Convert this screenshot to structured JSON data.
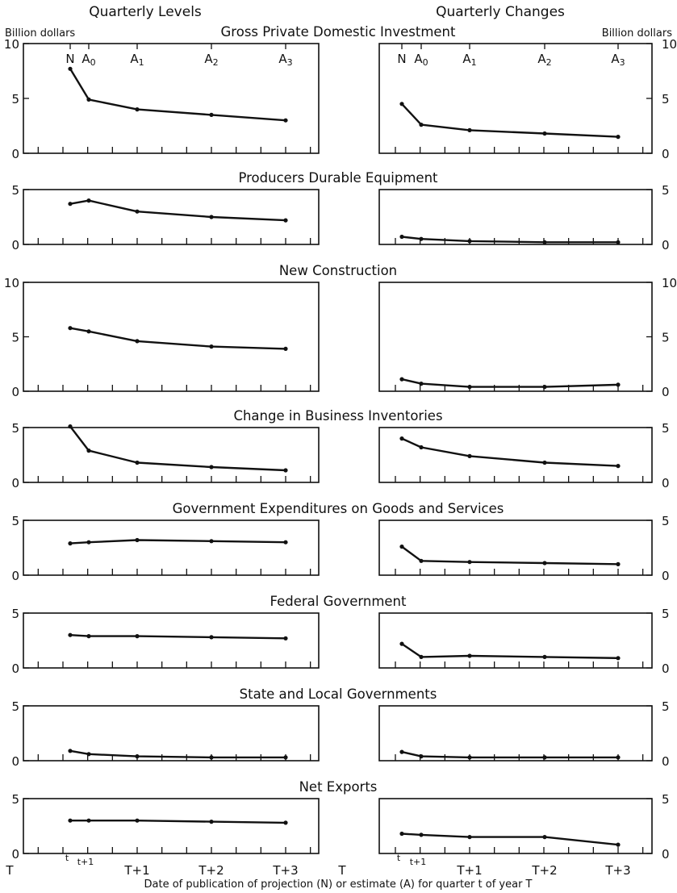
{
  "header": {
    "left_column_title": "Quarterly Levels",
    "right_column_title": "Quarterly Changes",
    "left_unit": "Billion dollars",
    "right_unit": "Billion dollars"
  },
  "x_axis": {
    "label": "Date of publication of projection (N) or estimate (A) for quarter t of year T",
    "ticks": [
      "T",
      "t",
      "t+1",
      "T+1",
      "T+2",
      "T+3"
    ],
    "markers": [
      "N",
      "A0",
      "A1",
      "A2",
      "A3"
    ]
  },
  "chart_data": [
    {
      "type": "line",
      "title": "Gross Private Domestic Investment",
      "x": [
        "N",
        "A0",
        "A1",
        "A2",
        "A3"
      ],
      "ylim": [
        0,
        10
      ],
      "yticks": [
        0,
        5,
        10
      ],
      "series": [
        {
          "values": [
            7.7,
            4.9,
            4.0,
            3.5,
            3.0
          ]
        },
        {
          "values": [
            4.5,
            2.6,
            2.1,
            1.8,
            1.5
          ]
        }
      ]
    },
    {
      "type": "line",
      "title": "Producers Durable Equipment",
      "x": [
        "N",
        "A0",
        "A1",
        "A2",
        "A3"
      ],
      "ylim": [
        0,
        5
      ],
      "yticks": [
        0,
        5
      ],
      "series": [
        {
          "values": [
            3.7,
            4.0,
            3.0,
            2.5,
            2.2
          ]
        },
        {
          "values": [
            0.7,
            0.5,
            0.3,
            0.2,
            0.2
          ]
        }
      ]
    },
    {
      "type": "line",
      "title": "New Construction",
      "x": [
        "N",
        "A0",
        "A1",
        "A2",
        "A3"
      ],
      "ylim": [
        0,
        10
      ],
      "yticks": [
        0,
        5,
        10
      ],
      "series": [
        {
          "values": [
            5.8,
            5.5,
            4.6,
            4.1,
            3.9
          ]
        },
        {
          "values": [
            1.1,
            0.7,
            0.4,
            0.4,
            0.6
          ]
        }
      ]
    },
    {
      "type": "line",
      "title": "Change in Business Inventories",
      "x": [
        "N",
        "A0",
        "A1",
        "A2",
        "A3"
      ],
      "ylim": [
        0,
        5
      ],
      "yticks": [
        0,
        5
      ],
      "series": [
        {
          "values": [
            5.1,
            2.9,
            1.8,
            1.4,
            1.1
          ]
        },
        {
          "values": [
            4.0,
            3.2,
            2.4,
            1.8,
            1.5
          ]
        }
      ]
    },
    {
      "type": "line",
      "title": "Government Expenditures on Goods and Services",
      "x": [
        "N",
        "A0",
        "A1",
        "A2",
        "A3"
      ],
      "ylim": [
        0,
        5
      ],
      "yticks": [
        0,
        5
      ],
      "series": [
        {
          "values": [
            2.9,
            3.0,
            3.2,
            3.1,
            3.0
          ]
        },
        {
          "values": [
            2.6,
            1.3,
            1.2,
            1.1,
            1.0
          ]
        }
      ]
    },
    {
      "type": "line",
      "title": "Federal Government",
      "x": [
        "N",
        "A0",
        "A1",
        "A2",
        "A3"
      ],
      "ylim": [
        0,
        5
      ],
      "yticks": [
        0,
        5
      ],
      "series": [
        {
          "values": [
            3.0,
            2.9,
            2.9,
            2.8,
            2.7
          ]
        },
        {
          "values": [
            2.2,
            1.0,
            1.1,
            1.0,
            0.9
          ]
        }
      ]
    },
    {
      "type": "line",
      "title": "State and Local Governments",
      "x": [
        "N",
        "A0",
        "A1",
        "A2",
        "A3"
      ],
      "ylim": [
        0,
        5
      ],
      "yticks": [
        0,
        5
      ],
      "series": [
        {
          "values": [
            0.9,
            0.6,
            0.4,
            0.3,
            0.3
          ]
        },
        {
          "values": [
            0.8,
            0.4,
            0.3,
            0.3,
            0.3
          ]
        }
      ]
    },
    {
      "type": "line",
      "title": "Net Exports",
      "x": [
        "N",
        "A0",
        "A1",
        "A2",
        "A3"
      ],
      "ylim": [
        0,
        5
      ],
      "yticks": [
        0,
        5
      ],
      "series": [
        {
          "values": [
            3.0,
            3.0,
            3.0,
            2.9,
            2.8
          ]
        },
        {
          "values": [
            1.8,
            1.7,
            1.5,
            1.5,
            0.8
          ]
        }
      ]
    }
  ]
}
